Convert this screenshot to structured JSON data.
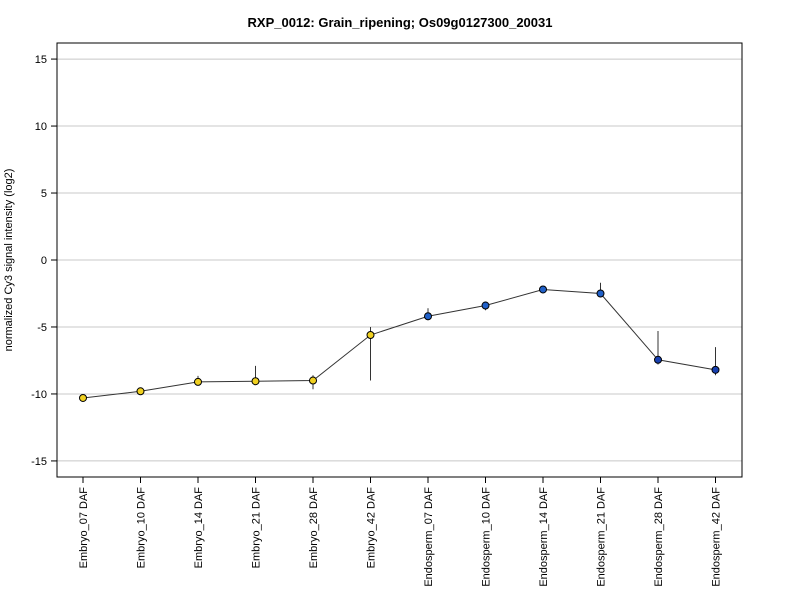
{
  "chart_data": {
    "type": "line",
    "title": "RXP_0012: Grain_ripening; Os09g0127300_20031",
    "xlabel": "",
    "ylabel": "normalized Cy3 signal intensity (log2)",
    "ylim": [
      -16.2,
      16.2
    ],
    "yticks": [
      15,
      10,
      5,
      0,
      -5,
      -10,
      -15
    ],
    "ytick_labels": [
      "15",
      "10",
      "5",
      "0",
      "-5",
      "-10",
      "-15"
    ],
    "grid": true,
    "categories": [
      "Embryo_07 DAF",
      "Embryo_10 DAF",
      "Embryo_14 DAF",
      "Embryo_21 DAF",
      "Embryo_28 DAF",
      "Embryo_42 DAF",
      "Endosperm_07 DAF",
      "Endosperm_10 DAF",
      "Endosperm_14 DAF",
      "Endosperm_21 DAF",
      "Endosperm_28 DAF",
      "Endosperm_42 DAF"
    ],
    "values": [
      -10.3,
      -9.8,
      -9.1,
      -9.05,
      -9.0,
      -5.6,
      -4.2,
      -3.4,
      -2.2,
      -2.5,
      -7.45,
      -8.2
    ],
    "err_high": [
      -10.2,
      -9.65,
      -8.65,
      -7.9,
      -8.6,
      -5.0,
      -3.6,
      -3.1,
      -2.05,
      -1.7,
      -5.3,
      -6.5
    ],
    "err_low": [
      -10.4,
      -9.95,
      -9.3,
      -9.2,
      -9.65,
      -9.0,
      -4.5,
      -3.75,
      -2.35,
      -2.8,
      -7.8,
      -8.6
    ],
    "point_colors": [
      "#f0d020",
      "#f0d020",
      "#f0d020",
      "#f0d020",
      "#f0d020",
      "#f0d020",
      "#2060c8",
      "#2060c8",
      "#2060c8",
      "#2060c8",
      "#1840b0",
      "#1840b0"
    ]
  }
}
